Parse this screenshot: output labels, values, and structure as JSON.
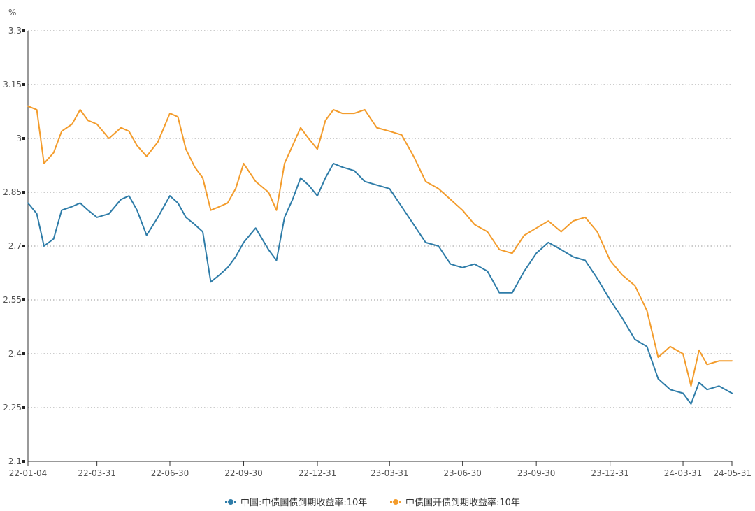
{
  "chart_data": {
    "type": "line",
    "ylabel": "%",
    "ylim": [
      2.1,
      3.3
    ],
    "y_ticks": [
      "2.1",
      "2.25",
      "2.4",
      "2.55",
      "2.7",
      "2.85",
      "3",
      "3.15",
      "3.3"
    ],
    "x_ticks": [
      "22-01-04",
      "22-03-31",
      "22-06-30",
      "22-09-30",
      "22-12-31",
      "23-03-31",
      "23-06-30",
      "23-09-30",
      "23-12-31",
      "24-03-31",
      "24-05-31"
    ],
    "grid": true,
    "legend_position": "bottom",
    "series": [
      {
        "name": "中国:中债国债到期收益率:10年",
        "color": "#2e7ca8",
        "points": [
          [
            "22-01-04",
            2.82
          ],
          [
            "22-01-15",
            2.79
          ],
          [
            "22-01-24",
            2.7
          ],
          [
            "22-02-05",
            2.72
          ],
          [
            "22-02-15",
            2.8
          ],
          [
            "22-02-28",
            2.81
          ],
          [
            "22-03-10",
            2.82
          ],
          [
            "22-03-20",
            2.8
          ],
          [
            "22-03-31",
            2.78
          ],
          [
            "22-04-15",
            2.79
          ],
          [
            "22-04-30",
            2.83
          ],
          [
            "22-05-10",
            2.84
          ],
          [
            "22-05-20",
            2.8
          ],
          [
            "22-06-01",
            2.73
          ],
          [
            "22-06-15",
            2.78
          ],
          [
            "22-06-30",
            2.84
          ],
          [
            "22-07-10",
            2.82
          ],
          [
            "22-07-20",
            2.78
          ],
          [
            "22-07-31",
            2.76
          ],
          [
            "22-08-10",
            2.74
          ],
          [
            "22-08-20",
            2.6
          ],
          [
            "22-08-31",
            2.62
          ],
          [
            "22-09-10",
            2.64
          ],
          [
            "22-09-20",
            2.67
          ],
          [
            "22-09-30",
            2.71
          ],
          [
            "22-10-15",
            2.75
          ],
          [
            "22-10-31",
            2.69
          ],
          [
            "22-11-10",
            2.66
          ],
          [
            "22-11-20",
            2.78
          ],
          [
            "22-11-30",
            2.83
          ],
          [
            "22-12-10",
            2.89
          ],
          [
            "22-12-20",
            2.87
          ],
          [
            "22-12-31",
            2.84
          ],
          [
            "23-01-10",
            2.89
          ],
          [
            "23-01-20",
            2.93
          ],
          [
            "23-01-31",
            2.92
          ],
          [
            "23-02-15",
            2.91
          ],
          [
            "23-02-28",
            2.88
          ],
          [
            "23-03-15",
            2.87
          ],
          [
            "23-03-31",
            2.86
          ],
          [
            "23-04-15",
            2.81
          ],
          [
            "23-04-30",
            2.76
          ],
          [
            "23-05-15",
            2.71
          ],
          [
            "23-05-31",
            2.7
          ],
          [
            "23-06-15",
            2.65
          ],
          [
            "23-06-30",
            2.64
          ],
          [
            "23-07-15",
            2.65
          ],
          [
            "23-07-31",
            2.63
          ],
          [
            "23-08-15",
            2.57
          ],
          [
            "23-08-31",
            2.57
          ],
          [
            "23-09-15",
            2.63
          ],
          [
            "23-09-30",
            2.68
          ],
          [
            "23-10-15",
            2.71
          ],
          [
            "23-10-31",
            2.69
          ],
          [
            "23-11-15",
            2.67
          ],
          [
            "23-11-30",
            2.66
          ],
          [
            "23-12-15",
            2.61
          ],
          [
            "23-12-31",
            2.55
          ],
          [
            "24-01-15",
            2.5
          ],
          [
            "24-01-31",
            2.44
          ],
          [
            "24-02-15",
            2.42
          ],
          [
            "24-02-29",
            2.33
          ],
          [
            "24-03-15",
            2.3
          ],
          [
            "24-03-31",
            2.29
          ],
          [
            "24-04-10",
            2.26
          ],
          [
            "24-04-20",
            2.32
          ],
          [
            "24-04-30",
            2.3
          ],
          [
            "24-05-15",
            2.31
          ],
          [
            "24-05-31",
            2.29
          ]
        ]
      },
      {
        "name": "中债国开债到期收益率:10年",
        "color": "#f39c2c",
        "points": [
          [
            "22-01-04",
            3.09
          ],
          [
            "22-01-15",
            3.08
          ],
          [
            "22-01-24",
            2.93
          ],
          [
            "22-02-05",
            2.96
          ],
          [
            "22-02-15",
            3.02
          ],
          [
            "22-02-28",
            3.04
          ],
          [
            "22-03-10",
            3.08
          ],
          [
            "22-03-20",
            3.05
          ],
          [
            "22-03-31",
            3.04
          ],
          [
            "22-04-15",
            3.0
          ],
          [
            "22-04-30",
            3.03
          ],
          [
            "22-05-10",
            3.02
          ],
          [
            "22-05-20",
            2.98
          ],
          [
            "22-06-01",
            2.95
          ],
          [
            "22-06-15",
            2.99
          ],
          [
            "22-06-30",
            3.07
          ],
          [
            "22-07-10",
            3.06
          ],
          [
            "22-07-20",
            2.97
          ],
          [
            "22-07-31",
            2.92
          ],
          [
            "22-08-10",
            2.89
          ],
          [
            "22-08-20",
            2.8
          ],
          [
            "22-08-31",
            2.81
          ],
          [
            "22-09-10",
            2.82
          ],
          [
            "22-09-20",
            2.86
          ],
          [
            "22-09-30",
            2.93
          ],
          [
            "22-10-15",
            2.88
          ],
          [
            "22-10-31",
            2.85
          ],
          [
            "22-11-10",
            2.8
          ],
          [
            "22-11-20",
            2.93
          ],
          [
            "22-11-30",
            2.98
          ],
          [
            "22-12-10",
            3.03
          ],
          [
            "22-12-20",
            3.0
          ],
          [
            "22-12-31",
            2.97
          ],
          [
            "23-01-10",
            3.05
          ],
          [
            "23-01-20",
            3.08
          ],
          [
            "23-01-31",
            3.07
          ],
          [
            "23-02-15",
            3.07
          ],
          [
            "23-02-28",
            3.08
          ],
          [
            "23-03-15",
            3.03
          ],
          [
            "23-03-31",
            3.02
          ],
          [
            "23-04-15",
            3.01
          ],
          [
            "23-04-30",
            2.95
          ],
          [
            "23-05-15",
            2.88
          ],
          [
            "23-05-31",
            2.86
          ],
          [
            "23-06-15",
            2.83
          ],
          [
            "23-06-30",
            2.8
          ],
          [
            "23-07-15",
            2.76
          ],
          [
            "23-07-31",
            2.74
          ],
          [
            "23-08-15",
            2.69
          ],
          [
            "23-08-31",
            2.68
          ],
          [
            "23-09-15",
            2.73
          ],
          [
            "23-09-30",
            2.75
          ],
          [
            "23-10-15",
            2.77
          ],
          [
            "23-10-31",
            2.74
          ],
          [
            "23-11-15",
            2.77
          ],
          [
            "23-11-30",
            2.78
          ],
          [
            "23-12-15",
            2.74
          ],
          [
            "23-12-31",
            2.66
          ],
          [
            "24-01-15",
            2.62
          ],
          [
            "24-01-31",
            2.59
          ],
          [
            "24-02-15",
            2.52
          ],
          [
            "24-02-29",
            2.39
          ],
          [
            "24-03-15",
            2.42
          ],
          [
            "24-03-31",
            2.4
          ],
          [
            "24-04-10",
            2.31
          ],
          [
            "24-04-20",
            2.41
          ],
          [
            "24-04-30",
            2.37
          ],
          [
            "24-05-15",
            2.38
          ],
          [
            "24-05-31",
            2.38
          ]
        ]
      }
    ]
  }
}
